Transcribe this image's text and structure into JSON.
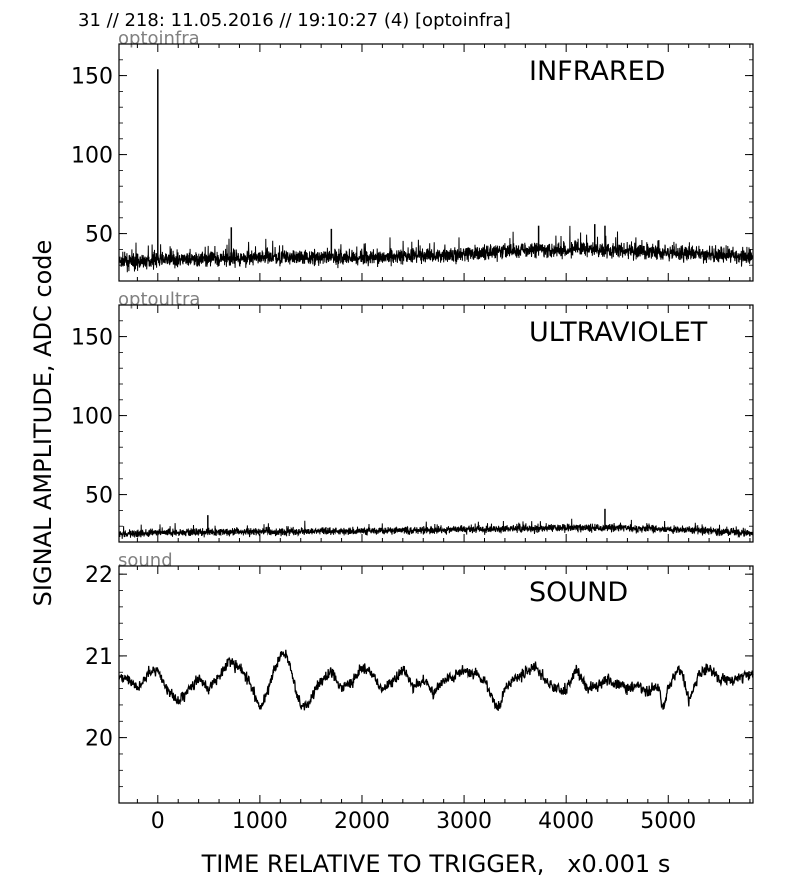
{
  "header": "31 // 218:   11.05.2016 // 19:10:27 (4)  [optoinfra]",
  "chart_data": {
    "type": "line",
    "xlabel": "TIME RELATIVE TO TRIGGER,   x0.001 s",
    "ylabel": "SIGNAL AMPLITUDE,  ADC code",
    "xlim": [
      -380,
      5830
    ],
    "xticks": [
      0,
      1000,
      2000,
      3000,
      4000,
      5000
    ],
    "xtick_labels": [
      "0",
      "1000",
      "2000",
      "3000",
      "4000",
      "5000"
    ],
    "grid": false,
    "panels": [
      {
        "tag": "optoinfra",
        "label": "INFRARED",
        "ylim": [
          20,
          170
        ],
        "yticks": [
          50,
          100,
          150
        ],
        "ytick_labels": [
          "50",
          "100",
          "150"
        ],
        "baseline": [
          [
            -380,
            32
          ],
          [
            0,
            33
          ],
          [
            1000,
            35
          ],
          [
            2000,
            35
          ],
          [
            3000,
            37
          ],
          [
            3700,
            40
          ],
          [
            4300,
            40
          ],
          [
            5000,
            38
          ],
          [
            5830,
            35
          ]
        ],
        "noise_amplitude": 6,
        "spikes": [
          [
            0,
            154
          ],
          [
            720,
            54
          ],
          [
            1700,
            53
          ],
          [
            3730,
            55
          ],
          [
            4280,
            56
          ],
          [
            4380,
            55
          ]
        ]
      },
      {
        "tag": "optoultra",
        "label": "ULTRAVIOLET",
        "ylim": [
          20,
          170
        ],
        "yticks": [
          50,
          100,
          150
        ],
        "ytick_labels": [
          "50",
          "100",
          "150"
        ],
        "baseline": [
          [
            -380,
            25
          ],
          [
            0,
            26
          ],
          [
            2000,
            27
          ],
          [
            3000,
            28
          ],
          [
            4000,
            29
          ],
          [
            4500,
            29
          ],
          [
            5000,
            28
          ],
          [
            5830,
            26
          ]
        ],
        "noise_amplitude": 3,
        "spikes": [
          [
            490,
            37
          ],
          [
            4380,
            41
          ]
        ]
      },
      {
        "tag": "sound",
        "label": "SOUND",
        "ylim": [
          19.2,
          22.1
        ],
        "yticks": [
          20,
          21,
          22
        ],
        "ytick_labels": [
          "20",
          "21",
          "22"
        ],
        "x": [
          -380,
          -300,
          -200,
          -100,
          0,
          100,
          200,
          300,
          400,
          500,
          600,
          700,
          800,
          900,
          1000,
          1080,
          1150,
          1200,
          1250,
          1300,
          1350,
          1400,
          1480,
          1550,
          1600,
          1700,
          1800,
          1900,
          2000,
          2100,
          2200,
          2300,
          2400,
          2500,
          2600,
          2700,
          2800,
          2900,
          3000,
          3100,
          3200,
          3300,
          3340,
          3400,
          3500,
          3600,
          3700,
          3800,
          3900,
          4000,
          4100,
          4200,
          4300,
          4400,
          4500,
          4600,
          4700,
          4800,
          4900,
          4950,
          5000,
          5100,
          5150,
          5200,
          5300,
          5400,
          5500,
          5600,
          5700,
          5780
        ],
        "values": [
          20.7,
          20.75,
          20.6,
          20.78,
          20.82,
          20.55,
          20.45,
          20.6,
          20.72,
          20.6,
          20.75,
          20.95,
          20.85,
          20.68,
          20.35,
          20.6,
          20.85,
          21.0,
          21.02,
          20.85,
          20.6,
          20.4,
          20.42,
          20.6,
          20.68,
          20.82,
          20.6,
          20.68,
          20.85,
          20.78,
          20.58,
          20.68,
          20.85,
          20.62,
          20.7,
          20.55,
          20.72,
          20.76,
          20.82,
          20.76,
          20.7,
          20.42,
          20.35,
          20.6,
          20.72,
          20.8,
          20.88,
          20.7,
          20.6,
          20.58,
          20.85,
          20.6,
          20.62,
          20.72,
          20.65,
          20.6,
          20.65,
          20.55,
          20.62,
          20.35,
          20.6,
          20.85,
          20.7,
          20.45,
          20.78,
          20.85,
          20.72,
          20.7,
          20.72,
          20.78
        ],
        "noise_amplitude": 0.05
      }
    ]
  }
}
